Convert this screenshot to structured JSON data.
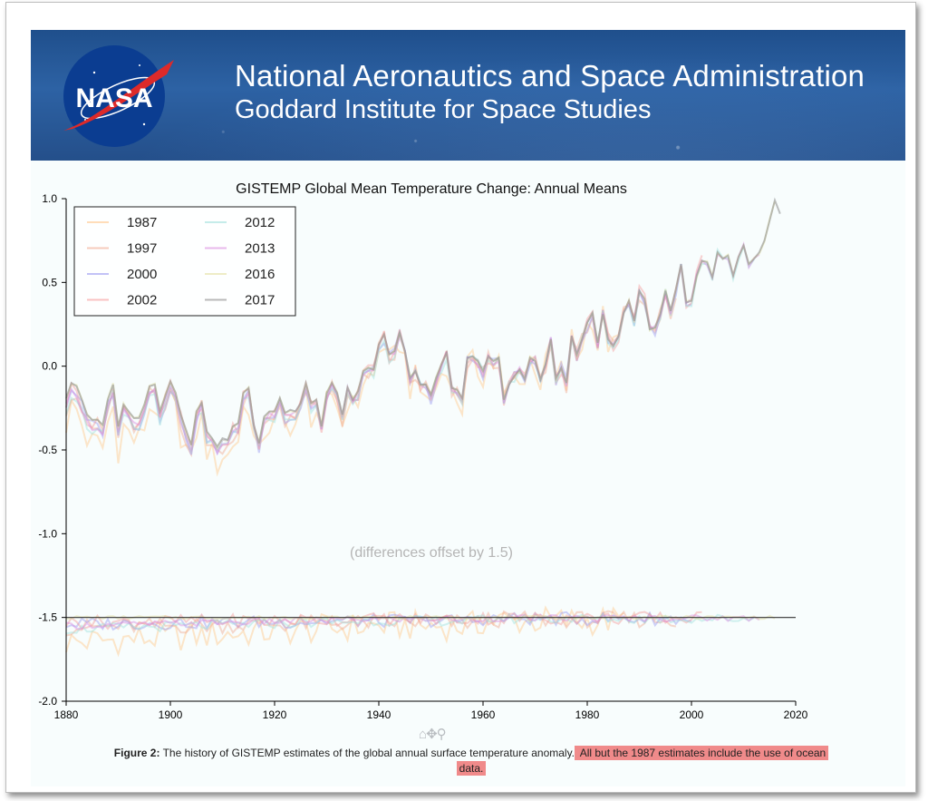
{
  "banner": {
    "title_line1": "National Aeronautics and Space Administration",
    "title_line2": "Goddard Institute for Space Studies",
    "logo_text": "NASA"
  },
  "toolbar": {
    "home_icon": "home-icon",
    "pan_icon": "pan-icon",
    "zoom_icon": "zoom-icon"
  },
  "caption": {
    "label": "Figure 2:",
    "text": " The history of GISTEMP estimates of the global annual surface temperature anomaly.",
    "highlighted_line1": " All but the 1987 estimates include the use of ocean",
    "highlighted_line2": "data.",
    "highlight_color": "#f08a8a"
  },
  "chart_data": {
    "type": "line",
    "title": "GISTEMP Global Mean Temperature Change: Annual Means",
    "annotation": "(differences offset by 1.5)",
    "xlim": [
      1880,
      2020
    ],
    "ylim": [
      -2.0,
      1.0
    ],
    "xticks": [
      1880,
      1900,
      1920,
      1940,
      1960,
      1980,
      2000,
      2020
    ],
    "yticks": [
      -2.0,
      -1.5,
      -1.0,
      -0.5,
      0.0,
      0.5,
      1.0
    ],
    "ytick_labels": [
      "-2.0",
      "-1.5",
      "-1.0",
      "-0.5",
      "0.0",
      "0.5",
      "1.0"
    ],
    "reference_line": -1.5,
    "legend_position": "top-left",
    "grid": false,
    "base_series": {
      "x": [
        1880,
        1881,
        1882,
        1883,
        1884,
        1885,
        1886,
        1887,
        1888,
        1889,
        1890,
        1891,
        1892,
        1893,
        1894,
        1895,
        1896,
        1897,
        1898,
        1899,
        1900,
        1901,
        1902,
        1903,
        1904,
        1905,
        1906,
        1907,
        1908,
        1909,
        1910,
        1911,
        1912,
        1913,
        1914,
        1915,
        1916,
        1917,
        1918,
        1919,
        1920,
        1921,
        1922,
        1923,
        1924,
        1925,
        1926,
        1927,
        1928,
        1929,
        1930,
        1931,
        1932,
        1933,
        1934,
        1935,
        1936,
        1937,
        1938,
        1939,
        1940,
        1941,
        1942,
        1943,
        1944,
        1945,
        1946,
        1947,
        1948,
        1949,
        1950,
        1951,
        1952,
        1953,
        1954,
        1955,
        1956,
        1957,
        1958,
        1959,
        1960,
        1961,
        1962,
        1963,
        1964,
        1965,
        1966,
        1967,
        1968,
        1969,
        1970,
        1971,
        1972,
        1973,
        1974,
        1975,
        1976,
        1977,
        1978,
        1979,
        1980,
        1981,
        1982,
        1983,
        1984,
        1985,
        1986,
        1987,
        1988,
        1989,
        1990,
        1991,
        1992,
        1993,
        1994,
        1995,
        1996,
        1997,
        1998,
        1999,
        2000,
        2001,
        2002,
        2003,
        2004,
        2005,
        2006,
        2007,
        2008,
        2009,
        2010,
        2011,
        2012,
        2013,
        2014,
        2015,
        2016,
        2017
      ],
      "y": [
        -0.19,
        -0.1,
        -0.12,
        -0.2,
        -0.29,
        -0.32,
        -0.32,
        -0.35,
        -0.2,
        -0.11,
        -0.36,
        -0.23,
        -0.27,
        -0.31,
        -0.31,
        -0.23,
        -0.12,
        -0.11,
        -0.27,
        -0.18,
        -0.09,
        -0.16,
        -0.29,
        -0.38,
        -0.47,
        -0.27,
        -0.22,
        -0.39,
        -0.43,
        -0.48,
        -0.43,
        -0.44,
        -0.36,
        -0.34,
        -0.16,
        -0.13,
        -0.35,
        -0.46,
        -0.3,
        -0.27,
        -0.27,
        -0.19,
        -0.28,
        -0.26,
        -0.27,
        -0.22,
        -0.1,
        -0.22,
        -0.2,
        -0.36,
        -0.16,
        -0.1,
        -0.16,
        -0.29,
        -0.13,
        -0.2,
        -0.15,
        -0.03,
        -0.01,
        -0.02,
        0.13,
        0.19,
        0.07,
        0.09,
        0.2,
        0.09,
        -0.07,
        -0.03,
        -0.11,
        -0.11,
        -0.17,
        -0.07,
        0.01,
        0.08,
        -0.13,
        -0.14,
        -0.19,
        0.05,
        0.06,
        0.03,
        -0.03,
        0.06,
        0.03,
        0.05,
        -0.2,
        -0.11,
        -0.06,
        -0.02,
        -0.08,
        0.05,
        0.03,
        -0.08,
        0.01,
        0.16,
        -0.07,
        -0.01,
        -0.1,
        0.18,
        0.07,
        0.16,
        0.26,
        0.32,
        0.14,
        0.31,
        0.16,
        0.12,
        0.18,
        0.32,
        0.39,
        0.27,
        0.45,
        0.4,
        0.22,
        0.23,
        0.31,
        0.45,
        0.33,
        0.46,
        0.61,
        0.38,
        0.39,
        0.54,
        0.63,
        0.62,
        0.53,
        0.68,
        0.64,
        0.66,
        0.54,
        0.65,
        0.72,
        0.61,
        0.64,
        0.68,
        0.75,
        0.87,
        0.99,
        0.91
      ]
    },
    "series": [
      {
        "name": "1987",
        "color": "#ffc78a",
        "end": 1987,
        "shift": -0.05,
        "noise": 0.09,
        "early_bias": -0.1
      },
      {
        "name": "1997",
        "color": "#f0a890",
        "end": 1997,
        "shift": -0.03,
        "noise": 0.05,
        "early_bias": -0.03
      },
      {
        "name": "2000",
        "color": "#9a9af0",
        "end": 2000,
        "shift": -0.02,
        "noise": 0.04,
        "early_bias": -0.02
      },
      {
        "name": "2002",
        "color": "#f59a9a",
        "end": 2002,
        "shift": -0.01,
        "noise": 0.04,
        "early_bias": -0.02
      },
      {
        "name": "2012",
        "color": "#9ee0dc",
        "end": 2012,
        "shift": -0.02,
        "noise": 0.03,
        "early_bias": -0.05
      },
      {
        "name": "2013",
        "color": "#d98ae0",
        "end": 2013,
        "shift": -0.01,
        "noise": 0.02,
        "early_bias": -0.04
      },
      {
        "name": "2016",
        "color": "#e3e0a0",
        "end": 2016,
        "shift": 0.0,
        "noise": 0.01,
        "early_bias": 0.0
      },
      {
        "name": "2017",
        "color": "#8a8a8a",
        "end": 2017,
        "shift": 0.0,
        "noise": 0.0,
        "early_bias": 0.0
      }
    ]
  }
}
